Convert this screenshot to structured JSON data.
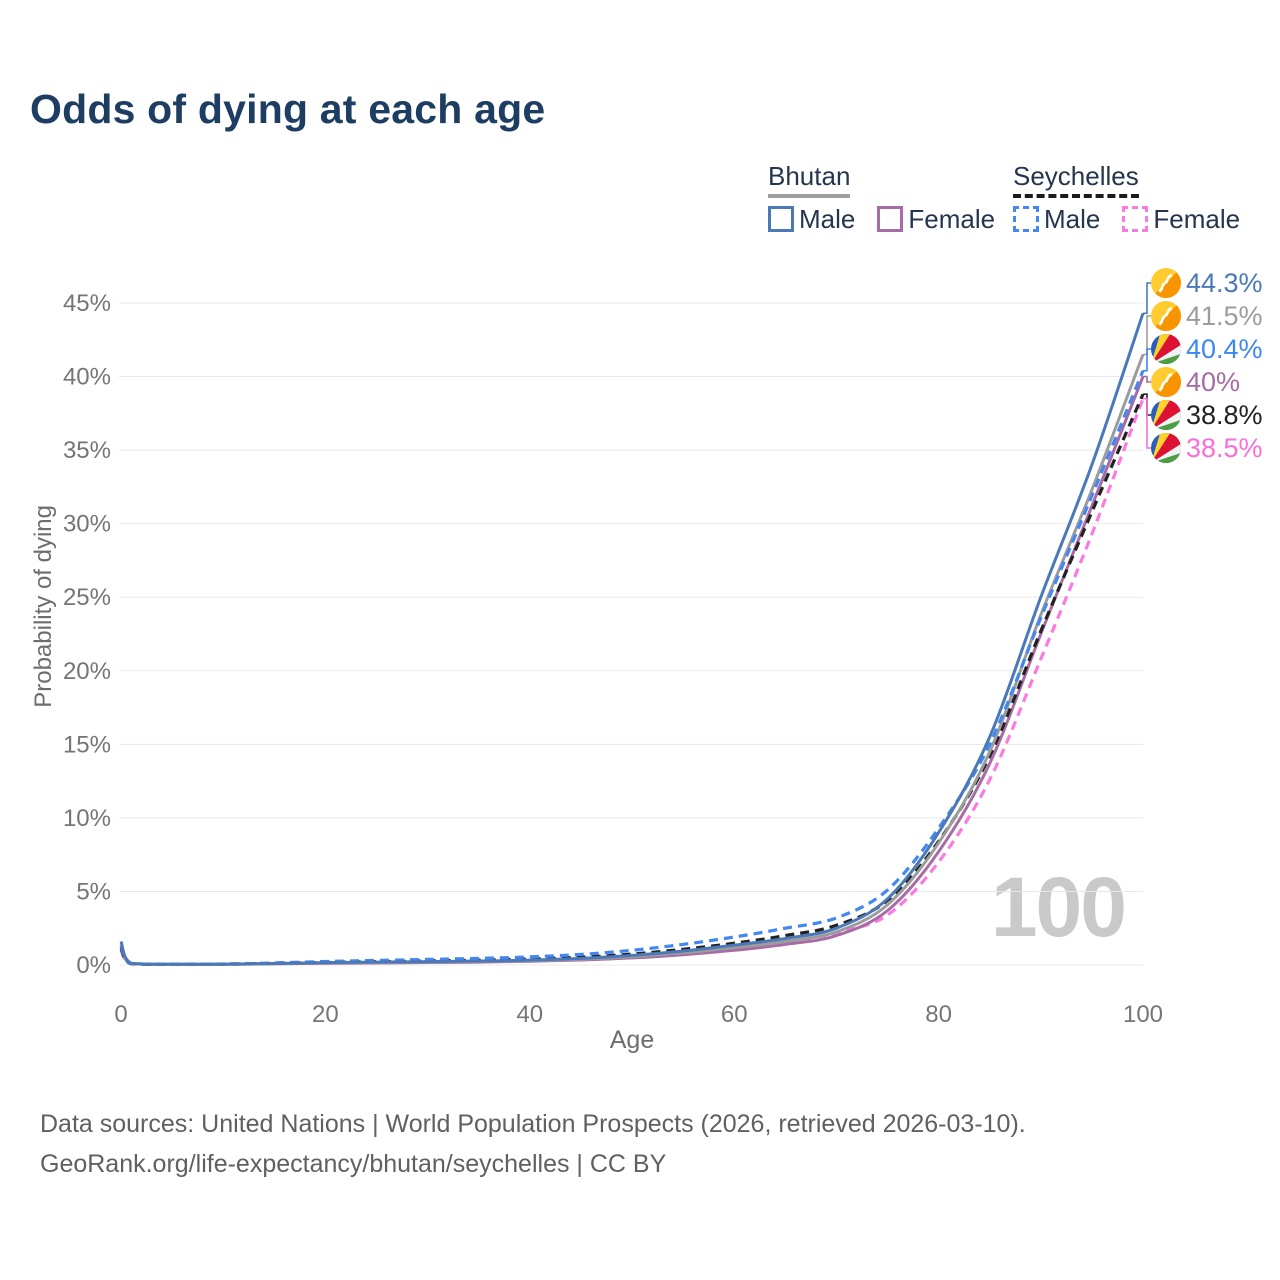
{
  "title": "Odds of dying at each age",
  "legend": {
    "groups": [
      {
        "label": "Bhutan",
        "underline_color": "#9e9e9e",
        "underline_style": "solid",
        "items": [
          {
            "label": "Male",
            "color": "#4b79b7",
            "dashed": false
          },
          {
            "label": "Female",
            "color": "#a76ba5",
            "dashed": false
          }
        ]
      },
      {
        "label": "Seychelles",
        "underline_color": "#1b1b1b",
        "underline_style": "dashed",
        "items": [
          {
            "label": "Male",
            "color": "#4387f2",
            "dashed": true
          },
          {
            "label": "Female",
            "color": "#fb7ae1",
            "dashed": true
          }
        ]
      }
    ]
  },
  "chart_data": {
    "type": "line",
    "title": "Odds of dying at each age",
    "xlabel": "Age",
    "ylabel": "Probability of dying",
    "xlim": [
      0,
      100
    ],
    "ylim": [
      0,
      45
    ],
    "grid": true,
    "x_ticks": [
      [
        0,
        "0"
      ],
      [
        20,
        "20"
      ],
      [
        40,
        "40"
      ],
      [
        60,
        "60"
      ],
      [
        80,
        "80"
      ],
      [
        100,
        "100"
      ]
    ],
    "y_ticks": [
      [
        0,
        "0%"
      ],
      [
        5,
        "5%"
      ],
      [
        10,
        "10%"
      ],
      [
        15,
        "15%"
      ],
      [
        20,
        "20%"
      ],
      [
        25,
        "25%"
      ],
      [
        30,
        "30%"
      ],
      [
        35,
        "35%"
      ],
      [
        40,
        "40%"
      ],
      [
        45,
        "45%"
      ]
    ],
    "x": [
      0,
      1,
      5,
      10,
      15,
      20,
      25,
      30,
      35,
      40,
      45,
      50,
      55,
      60,
      65,
      70,
      75,
      80,
      85,
      90,
      95,
      100
    ],
    "series": [
      {
        "id": "seychelles-female",
        "name": "Seychelles Female",
        "color": "#fb7ae1",
        "dash": "9 6",
        "width": 3.2,
        "values": [
          1.0,
          0.08,
          0.04,
          0.05,
          0.09,
          0.13,
          0.16,
          0.19,
          0.23,
          0.29,
          0.37,
          0.52,
          0.76,
          1.1,
          1.55,
          2.2,
          3.4,
          7.0,
          12.6,
          20.8,
          29.3,
          38.5
        ]
      },
      {
        "id": "bhutan-female",
        "name": "Bhutan Female",
        "color": "#a76ba5",
        "dash": null,
        "width": 3,
        "values": [
          1.2,
          0.1,
          0.04,
          0.04,
          0.08,
          0.12,
          0.14,
          0.17,
          0.2,
          0.26,
          0.34,
          0.48,
          0.7,
          1.0,
          1.4,
          2.0,
          3.7,
          7.7,
          13.7,
          22.5,
          31.2,
          40.0
        ]
      },
      {
        "id": "seychelles-total",
        "name": "Seychelles (both sexes)",
        "color": "#222222",
        "dash": "9 6",
        "width": 3.2,
        "values": [
          1.15,
          0.09,
          0.05,
          0.06,
          0.11,
          0.18,
          0.23,
          0.28,
          0.33,
          0.41,
          0.53,
          0.74,
          1.07,
          1.48,
          2.0,
          2.7,
          4.4,
          8.4,
          14.2,
          22.7,
          30.8,
          38.8
        ]
      },
      {
        "id": "bhutan-total",
        "name": "Bhutan (both sexes)",
        "color": "#9c9c9c",
        "dash": null,
        "width": 3,
        "values": [
          1.4,
          0.11,
          0.05,
          0.05,
          0.09,
          0.14,
          0.17,
          0.2,
          0.24,
          0.29,
          0.39,
          0.56,
          0.83,
          1.18,
          1.6,
          2.25,
          4.1,
          8.3,
          14.5,
          23.8,
          32.3,
          41.5
        ]
      },
      {
        "id": "seychelles-male",
        "name": "Seychelles Male",
        "color": "#4387f2",
        "dash": "9 6",
        "width": 3.2,
        "values": [
          1.3,
          0.1,
          0.06,
          0.07,
          0.14,
          0.24,
          0.31,
          0.38,
          0.45,
          0.55,
          0.72,
          1.0,
          1.4,
          1.9,
          2.5,
          3.2,
          5.1,
          9.3,
          15.0,
          23.6,
          31.9,
          40.4
        ]
      },
      {
        "id": "bhutan-male",
        "name": "Bhutan Male",
        "color": "#4b79b7",
        "dash": null,
        "width": 3,
        "values": [
          1.6,
          0.12,
          0.05,
          0.06,
          0.1,
          0.16,
          0.2,
          0.23,
          0.27,
          0.33,
          0.45,
          0.65,
          0.95,
          1.35,
          1.8,
          2.5,
          4.5,
          9.0,
          15.5,
          25.0,
          34.0,
          44.3
        ]
      }
    ]
  },
  "end_labels": [
    {
      "series": "bhutan-male",
      "value": "44.3%",
      "num": 44.3,
      "color": "#4b79b7",
      "flag": "bhutan"
    },
    {
      "series": "bhutan-total",
      "value": "41.5%",
      "num": 41.5,
      "color": "#9c9c9c",
      "flag": "bhutan"
    },
    {
      "series": "seychelles-male",
      "value": "40.4%",
      "num": 40.4,
      "color": "#3d87f5",
      "flag": "seychelles"
    },
    {
      "series": "bhutan-female",
      "value": "40%",
      "num": 40.0,
      "color": "#a76ba5",
      "flag": "bhutan"
    },
    {
      "series": "seychelles-total",
      "value": "38.8%",
      "num": 38.8,
      "color": "#222222",
      "flag": "seychelles"
    },
    {
      "series": "seychelles-female",
      "value": "38.5%",
      "num": 38.5,
      "color": "#fb6ed8",
      "flag": "seychelles"
    }
  ],
  "watermark": "100",
  "footer": {
    "line1": "Data sources: United Nations | World Population Prospects (2026, retrieved 2026-03-10).",
    "line2": "GeoRank.org/life-expectancy/bhutan/seychelles | CC BY"
  },
  "colors": {
    "title": "#1d3d63",
    "grid": "#e8e8e8",
    "tick_text": "#757575",
    "axis_title_text": "#6e6e6e",
    "watermark": "#c9c9c9",
    "footer_text": "#606060"
  }
}
